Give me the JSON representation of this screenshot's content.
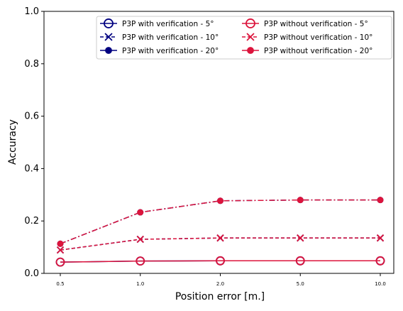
{
  "chart_data": {
    "type": "line",
    "title": "",
    "xlabel": "Position error [m.]",
    "ylabel": "Accuracy",
    "categories": [
      "0.5",
      "1.0",
      "2.0",
      "5.0",
      "10.0"
    ],
    "ylim": [
      0,
      1
    ],
    "yticks": [
      "0.0",
      "0.2",
      "0.4",
      "0.6",
      "0.8",
      "1.0"
    ],
    "grid": false,
    "legend_position": "top-right",
    "colors": {
      "with": "#000080",
      "without": "#dc143c"
    },
    "series": [
      {
        "name": "P3P with verification - 5°",
        "group": "with",
        "marker": "circle-open",
        "linestyle": "solid",
        "values": [
          0.043,
          0.047,
          0.048,
          0.048,
          0.048
        ]
      },
      {
        "name": "P3P with verification - 10°",
        "group": "with",
        "marker": "x",
        "linestyle": "dashed",
        "values": [
          0.089,
          0.13,
          0.135,
          0.135,
          0.135
        ]
      },
      {
        "name": "P3P with verification - 20°",
        "group": "with",
        "marker": "dot",
        "linestyle": "dashdot",
        "values": [
          0.113,
          0.233,
          0.277,
          0.28,
          0.28
        ]
      },
      {
        "name": "P3P without verification - 5°",
        "group": "without",
        "marker": "circle-open",
        "linestyle": "solid",
        "values": [
          0.043,
          0.047,
          0.048,
          0.048,
          0.048
        ]
      },
      {
        "name": "P3P without verification - 10°",
        "group": "without",
        "marker": "x",
        "linestyle": "dashed",
        "values": [
          0.089,
          0.13,
          0.135,
          0.135,
          0.135
        ]
      },
      {
        "name": "P3P without verification - 20°",
        "group": "without",
        "marker": "dot",
        "linestyle": "dashdot",
        "values": [
          0.113,
          0.233,
          0.277,
          0.28,
          0.28
        ]
      }
    ]
  }
}
